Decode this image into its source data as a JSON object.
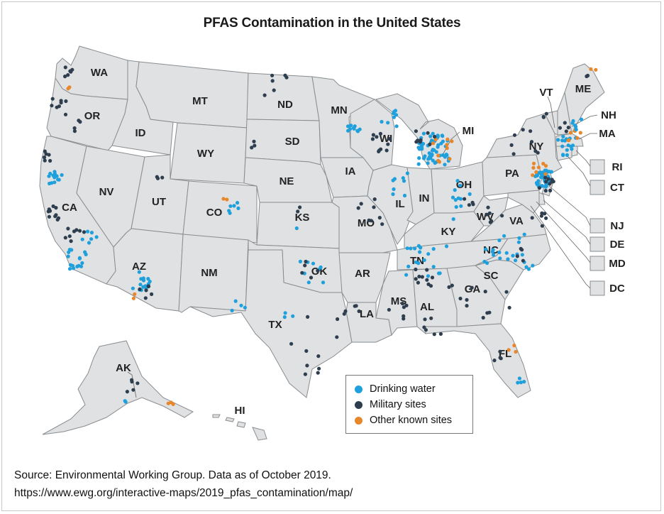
{
  "title": "PFAS Contamination in the United States",
  "colors": {
    "drinking_water": "#1ea0dc",
    "military": "#2e3e4e",
    "other": "#e8862a",
    "land": "#dfe1e2",
    "border": "#8a8d90"
  },
  "states": [
    {
      "code": "WA",
      "label": "WA"
    },
    {
      "code": "OR",
      "label": "OR"
    },
    {
      "code": "CA",
      "label": "CA"
    },
    {
      "code": "ID",
      "label": "ID"
    },
    {
      "code": "NV",
      "label": "NV"
    },
    {
      "code": "MT",
      "label": "MT"
    },
    {
      "code": "WY",
      "label": "WY"
    },
    {
      "code": "UT",
      "label": "UT"
    },
    {
      "code": "AZ",
      "label": "AZ"
    },
    {
      "code": "CO",
      "label": "CO"
    },
    {
      "code": "NM",
      "label": "NM"
    },
    {
      "code": "ND",
      "label": "ND"
    },
    {
      "code": "SD",
      "label": "SD"
    },
    {
      "code": "NE",
      "label": "NE"
    },
    {
      "code": "KS",
      "label": "KS"
    },
    {
      "code": "OK",
      "label": "OK"
    },
    {
      "code": "TX",
      "label": "TX"
    },
    {
      "code": "MN",
      "label": "MN"
    },
    {
      "code": "IA",
      "label": "IA"
    },
    {
      "code": "MO",
      "label": "MO"
    },
    {
      "code": "AR",
      "label": "AR"
    },
    {
      "code": "LA",
      "label": "LA"
    },
    {
      "code": "WI",
      "label": "WI"
    },
    {
      "code": "IL",
      "label": "IL"
    },
    {
      "code": "MI",
      "label": "MI"
    },
    {
      "code": "IN",
      "label": "IN"
    },
    {
      "code": "OH",
      "label": "OH"
    },
    {
      "code": "KY",
      "label": "KY"
    },
    {
      "code": "TN",
      "label": "TN"
    },
    {
      "code": "MS",
      "label": "MS"
    },
    {
      "code": "AL",
      "label": "AL"
    },
    {
      "code": "GA",
      "label": "GA"
    },
    {
      "code": "FL",
      "label": "FL"
    },
    {
      "code": "SC",
      "label": "SC"
    },
    {
      "code": "NC",
      "label": "NC"
    },
    {
      "code": "VA",
      "label": "VA"
    },
    {
      "code": "WV",
      "label": "WV"
    },
    {
      "code": "PA",
      "label": "PA"
    },
    {
      "code": "NY",
      "label": "NY"
    },
    {
      "code": "VT",
      "label": "VT"
    },
    {
      "code": "NH",
      "label": "NH"
    },
    {
      "code": "ME",
      "label": "ME"
    },
    {
      "code": "MA",
      "label": "MA"
    },
    {
      "code": "AK",
      "label": "AK"
    },
    {
      "code": "HI",
      "label": "HI"
    }
  ],
  "small_states": [
    {
      "code": "RI",
      "label": "RI"
    },
    {
      "code": "CT",
      "label": "CT"
    },
    {
      "code": "NJ",
      "label": "NJ"
    },
    {
      "code": "DE",
      "label": "DE"
    },
    {
      "code": "MD",
      "label": "MD"
    },
    {
      "code": "DC",
      "label": "DC"
    }
  ],
  "legend": [
    {
      "key": "drinking_water",
      "label": "Drinking water"
    },
    {
      "key": "military",
      "label": "Military sites"
    },
    {
      "key": "other",
      "label": "Other known sites"
    }
  ],
  "source_line1": "Source: Environmental Working Group. Data as of October 2019.",
  "source_line2": "https://www.ewg.org/interactive-maps/2019_pfas_contamination/map/"
}
